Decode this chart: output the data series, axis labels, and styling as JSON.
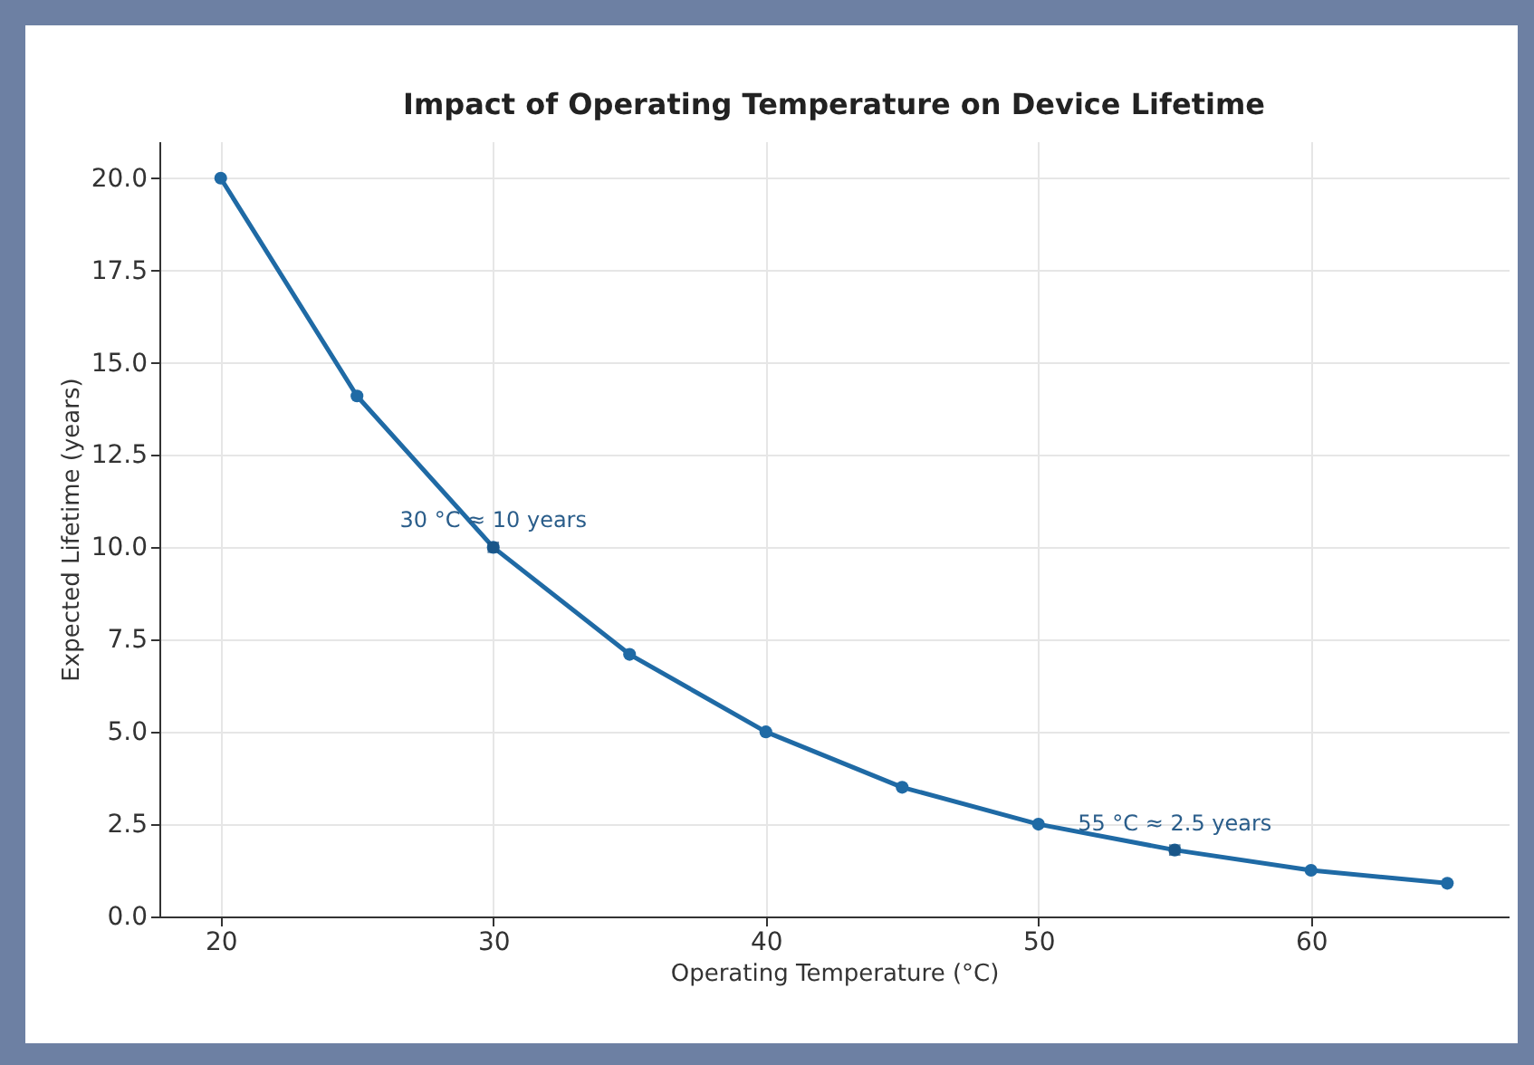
{
  "chart_data": {
    "type": "line",
    "title": "Impact of Operating Temperature on Device Lifetime",
    "xlabel": "Operating Temperature (°C)",
    "ylabel": "Expected Lifetime (years)",
    "x": [
      20,
      25,
      30,
      35,
      40,
      45,
      50,
      55,
      60,
      65
    ],
    "series": [
      {
        "color": "#1f6aa5",
        "values": [
          20,
          14.1,
          10,
          7.1,
          5,
          3.5,
          2.5,
          1.8,
          1.25,
          0.9
        ]
      }
    ],
    "xlim": [
      17.75,
      67.25
    ],
    "xticks": [
      20,
      30,
      40,
      50,
      60
    ],
    "ylim": [
      0,
      21
    ],
    "yticks": [
      {
        "value": 0,
        "label": "0.0"
      },
      {
        "value": 2.5,
        "label": "2.5"
      },
      {
        "value": 5,
        "label": "5.0"
      },
      {
        "value": 7.5,
        "label": "7.5"
      },
      {
        "value": 10,
        "label": "10.0"
      },
      {
        "value": 12.5,
        "label": "12.5"
      },
      {
        "value": 15,
        "label": "15.0"
      },
      {
        "value": 17.5,
        "label": "17.5"
      },
      {
        "value": 20,
        "label": "20.0"
      }
    ],
    "annotations": [
      {
        "text": "30 °C ≈ 10 years",
        "x": 30,
        "y": 10
      },
      {
        "text": "55 °C ≈ 2.5 years",
        "x": 55,
        "y": 1.8
      }
    ],
    "grid": true,
    "marker": "circle",
    "line_style": "solid"
  }
}
